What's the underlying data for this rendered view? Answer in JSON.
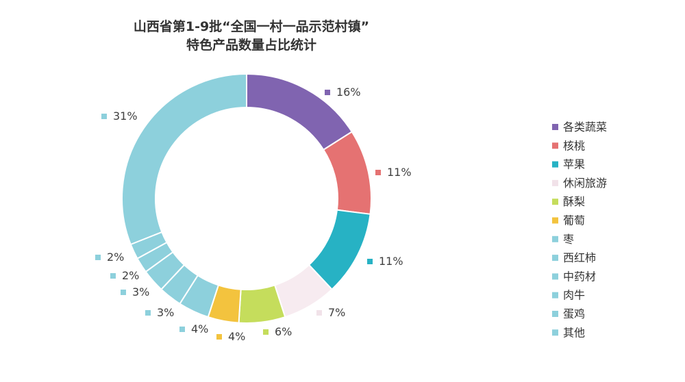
{
  "chart_data": {
    "type": "pie",
    "variant": "donut",
    "title_lines": [
      "山西省第1-9批“全国一村一品示范村镇”",
      "特色产品数量占比统计"
    ],
    "categories": [
      "各类蔬菜",
      "核桃",
      "苹果",
      "休闲旅游",
      "酥梨",
      "葡萄",
      "枣",
      "西红柿",
      "中药材",
      "肉牛",
      "蛋鸡",
      "其他"
    ],
    "values": [
      16,
      11,
      11,
      7,
      6,
      4,
      4,
      3,
      3,
      2,
      2,
      31
    ],
    "labels": [
      "16%",
      "11%",
      "11%",
      "7%",
      "6%",
      "4%",
      "4%",
      "3%",
      "3%",
      "2%",
      "2%",
      "31%"
    ],
    "colors": [
      "#8064b0",
      "#e57272",
      "#27b2c4",
      "#f7ebf0",
      "#c5dd5c",
      "#f3c33e",
      "#8dd0dc",
      "#8dd0dc",
      "#8dd0dc",
      "#8dd0dc",
      "#8dd0dc",
      "#8dd0dc"
    ],
    "legend_position": "right",
    "start_angle_deg": 0,
    "direction": "clockwise"
  }
}
